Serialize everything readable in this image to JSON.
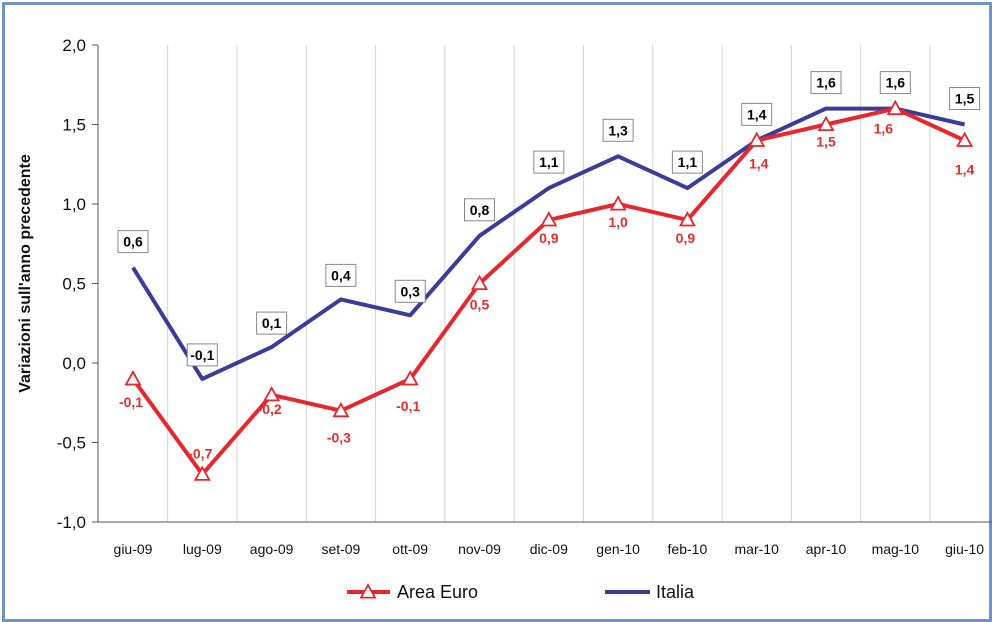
{
  "chart_data": {
    "type": "line",
    "title": "",
    "xlabel": "",
    "ylabel": "Variazioni sull'anno precedente",
    "ylim": [
      -1.0,
      2.0
    ],
    "yticks": [
      2.0,
      1.5,
      1.0,
      0.5,
      0.0,
      -0.5,
      -1.0
    ],
    "ytick_labels": [
      "2,0",
      "1,5",
      "1,0",
      "0,5",
      "0,0",
      "-0,5",
      "-1,0"
    ],
    "grid": "vertical",
    "legend_position": "bottom",
    "categories": [
      "giu-09",
      "lug-09",
      "ago-09",
      "set-09",
      "ott-09",
      "nov-09",
      "dic-09",
      "gen-10",
      "feb-10",
      "mar-10",
      "apr-10",
      "mag-10",
      "giu-10"
    ],
    "series": [
      {
        "name": "Area Euro",
        "color": "#e8262d",
        "marker": "triangle-open",
        "values": [
          -0.1,
          -0.7,
          -0.2,
          -0.3,
          -0.1,
          0.5,
          0.9,
          1.0,
          0.9,
          1.4,
          1.5,
          1.6,
          1.4
        ],
        "labels": [
          "-0,1",
          "-0,7",
          "-0,2",
          "-0,3",
          "-0,1",
          "0,5",
          "0,9",
          "1,0",
          "0,9",
          "1,4",
          "1,5",
          "1,6",
          "1,4"
        ]
      },
      {
        "name": "Italia",
        "color": "#3b3b9a",
        "marker": "none",
        "values": [
          0.6,
          -0.1,
          0.1,
          0.4,
          0.3,
          0.8,
          1.1,
          1.3,
          1.1,
          1.4,
          1.6,
          1.6,
          1.5
        ],
        "labels": [
          "0,6",
          "-0,1",
          "0,1",
          "0,4",
          "0,3",
          "0,8",
          "1,1",
          "1,3",
          "1,1",
          "1,4",
          "1,6",
          "1,6",
          "1,5"
        ]
      }
    ]
  }
}
